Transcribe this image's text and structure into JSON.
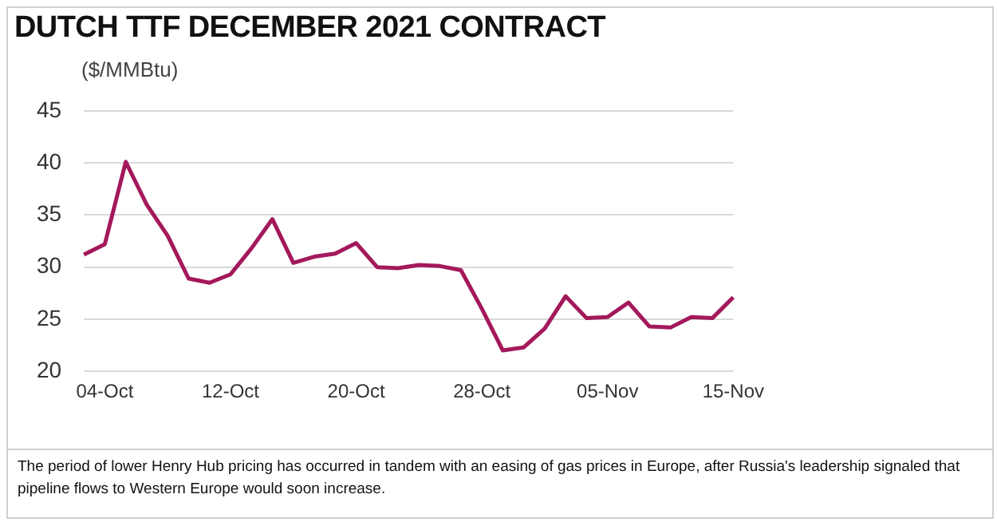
{
  "chart_data": {
    "type": "line",
    "title": "DUTCH TTF DECEMBER 2021 CONTRACT",
    "ylabel": "($/MMBtu)",
    "annotations": [
      "The period of lower Henry Hub pricing has occurred in tandem with an easing of gas prices in Europe, after Russia's leadership signaled that pipeline flows to Western Europe would soon increase."
    ],
    "categories": [
      null,
      "04-Oct",
      null,
      null,
      null,
      null,
      null,
      "12-Oct",
      null,
      null,
      null,
      null,
      null,
      "20-Oct",
      null,
      null,
      null,
      null,
      null,
      "28-Oct",
      null,
      null,
      null,
      null,
      null,
      "05-Nov",
      null,
      null,
      null,
      null,
      null,
      "15-Nov"
    ],
    "series": [
      {
        "color": "#a3195b",
        "values": [
          31.2,
          32.2,
          40.1,
          36,
          33,
          28.9,
          28.5,
          29.3,
          31.8,
          34.6,
          30.4,
          31.0,
          31.3,
          32.3,
          30.0,
          29.9,
          30.2,
          30.1,
          29.7,
          26.0,
          22.0,
          22.3,
          24.1,
          27.2,
          25.1,
          25.2,
          26.6,
          24.3,
          24.2,
          25.2,
          25.1,
          27.1
        ]
      }
    ],
    "ylim": [
      20,
      45
    ],
    "yticks": [
      20,
      25,
      30,
      35,
      40,
      45
    ],
    "grid": "y",
    "marker": "none",
    "line_style": "solid",
    "legend": false
  }
}
